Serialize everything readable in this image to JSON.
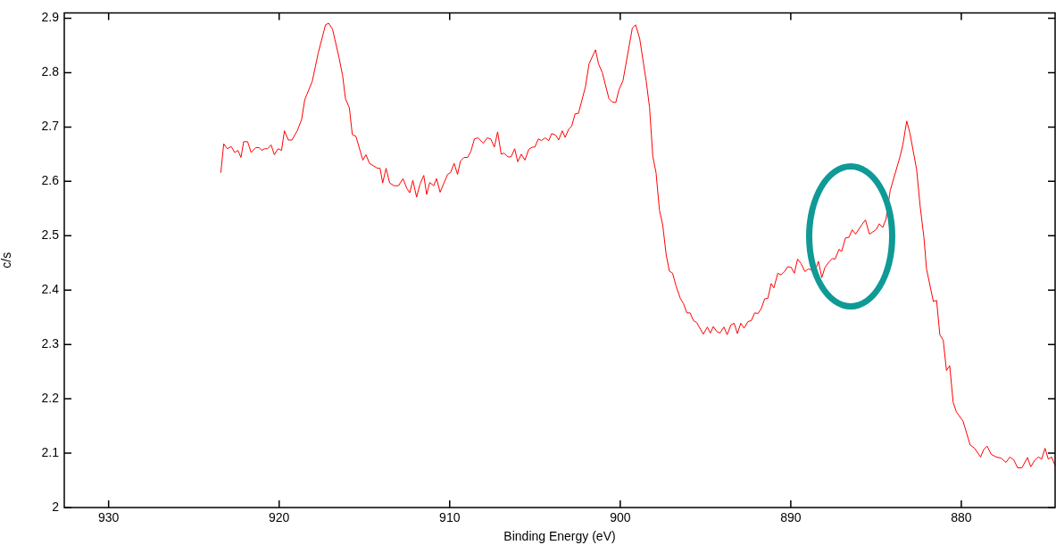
{
  "chart_data": {
    "type": "line",
    "xlabel": "Binding Energy (eV)",
    "ylabel": "c/s",
    "xlim": [
      932.6,
      874.5
    ],
    "xticks": [
      930,
      920,
      910,
      900,
      890,
      880
    ],
    "ylim": [
      2,
      2.91
    ],
    "yticks": [
      2,
      2.1,
      2.2,
      2.3,
      2.4,
      2.5,
      2.6,
      2.7,
      2.8,
      2.9
    ],
    "legend": false,
    "marker": "none",
    "line_style": "solid",
    "series": [
      {
        "color": "#ff0000",
        "x": [
          923.42,
          923.25,
          923.04,
          922.81,
          922.6,
          922.42,
          922.24,
          922.08,
          921.85,
          921.64,
          921.38,
          921.17,
          921.03,
          920.85,
          920.68,
          920.47,
          920.28,
          920.07,
          919.86,
          919.69,
          919.46,
          919.25,
          918.94,
          918.68,
          918.5,
          918.06,
          917.71,
          917.28,
          917.1,
          916.87,
          916.49,
          916.28,
          916.11,
          915.88,
          915.71,
          915.5,
          915.09,
          914.91,
          914.7,
          914.23,
          914.08,
          913.93,
          913.73,
          913.52,
          913.26,
          913,
          912.74,
          912.51,
          912.34,
          912.16,
          911.94,
          911.74,
          911.52,
          911.35,
          911.17,
          910.94,
          910.77,
          910.56,
          910.12,
          909.95,
          909.74,
          909.54,
          909.37,
          909.16,
          908.95,
          908.76,
          908.55,
          908.34,
          908.03,
          907.8,
          907.59,
          907.38,
          907.19,
          906.98,
          906.81,
          906.58,
          906.4,
          906.19,
          906.01,
          905.8,
          905.59,
          905.36,
          905.15,
          905.01,
          904.8,
          904.62,
          904.41,
          904.19,
          904.02,
          903.79,
          903.61,
          903.4,
          903.23,
          903.02,
          902.84,
          902.65,
          902.45,
          902.04,
          901.83,
          901.45,
          901.27,
          901.05,
          900.66,
          900.47,
          900.26,
          900.07,
          899.84,
          899.29,
          899.1,
          898.86,
          898.48,
          898.28,
          898.09,
          897.9,
          897.7,
          897.51,
          897.31,
          897.12,
          896.93,
          896.73,
          896.48,
          896.29,
          896.09,
          895.9,
          895.71,
          895.51,
          895.13,
          894.89,
          894.72,
          894.54,
          894.35,
          894.15,
          893.92,
          893.73,
          893.51,
          893.32,
          893.13,
          892.93,
          892.74,
          892.51,
          892.31,
          892.12,
          891.92,
          891.73,
          891.53,
          891.34,
          891.15,
          890.99,
          890.76,
          890.57,
          890.37,
          890.18,
          889.98,
          889.79,
          889.6,
          889.4,
          889.17,
          888.97,
          888.57,
          888.38,
          888.18,
          887.99,
          887.75,
          887.56,
          887.4,
          887.17,
          887.02,
          886.79,
          886.59,
          886.4,
          886.2,
          885.82,
          885.62,
          885.39,
          885.19,
          885,
          884.81,
          884.61,
          884.42,
          884.17,
          883.59,
          883.43,
          883.2,
          883.01,
          882.62,
          882.42,
          882.19,
          882.04,
          881.64,
          881.45,
          881.26,
          881.06,
          880.87,
          880.68,
          880.48,
          880.29,
          879.9,
          879.48,
          879.22,
          878.87,
          878.68,
          878.49,
          878.25,
          877.96,
          877.67,
          877.38,
          877.15,
          876.91,
          876.7,
          876.45,
          876.12,
          875.93,
          875.69,
          875.48,
          875.29,
          875.09,
          874.9,
          874.71,
          874.5
        ],
        "values": [
          2.616,
          2.669,
          2.66,
          2.664,
          2.653,
          2.657,
          2.644,
          2.673,
          2.673,
          2.653,
          2.662,
          2.662,
          2.657,
          2.66,
          2.66,
          2.667,
          2.649,
          2.66,
          2.657,
          2.693,
          2.676,
          2.676,
          2.693,
          2.714,
          2.75,
          2.784,
          2.836,
          2.888,
          2.891,
          2.88,
          2.828,
          2.795,
          2.752,
          2.735,
          2.686,
          2.683,
          2.639,
          2.649,
          2.633,
          2.624,
          2.624,
          2.597,
          2.624,
          2.597,
          2.592,
          2.592,
          2.605,
          2.587,
          2.579,
          2.602,
          2.571,
          2.595,
          2.611,
          2.576,
          2.598,
          2.592,
          2.605,
          2.58,
          2.613,
          2.616,
          2.633,
          2.613,
          2.637,
          2.644,
          2.644,
          2.655,
          2.678,
          2.68,
          2.67,
          2.68,
          2.678,
          2.663,
          2.691,
          2.65,
          2.652,
          2.645,
          2.645,
          2.66,
          2.636,
          2.65,
          2.639,
          2.659,
          2.663,
          2.663,
          2.678,
          2.675,
          2.68,
          2.675,
          2.688,
          2.685,
          2.676,
          2.693,
          2.681,
          2.696,
          2.702,
          2.724,
          2.725,
          2.774,
          2.816,
          2.842,
          2.816,
          2.8,
          2.752,
          2.746,
          2.745,
          2.769,
          2.785,
          2.882,
          2.888,
          2.863,
          2.785,
          2.736,
          2.646,
          2.616,
          2.547,
          2.52,
          2.466,
          2.435,
          2.431,
          2.408,
          2.385,
          2.375,
          2.358,
          2.358,
          2.344,
          2.34,
          2.319,
          2.332,
          2.321,
          2.333,
          2.324,
          2.321,
          2.332,
          2.318,
          2.336,
          2.339,
          2.32,
          2.339,
          2.33,
          2.342,
          2.344,
          2.358,
          2.357,
          2.366,
          2.384,
          2.385,
          2.412,
          2.404,
          2.431,
          2.428,
          2.434,
          2.443,
          2.442,
          2.431,
          2.457,
          2.449,
          2.434,
          2.439,
          2.435,
          2.453,
          2.423,
          2.442,
          2.452,
          2.458,
          2.457,
          2.475,
          2.471,
          2.496,
          2.497,
          2.511,
          2.503,
          2.521,
          2.529,
          2.503,
          2.507,
          2.511,
          2.522,
          2.515,
          2.53,
          2.583,
          2.646,
          2.667,
          2.711,
          2.688,
          2.622,
          2.556,
          2.496,
          2.439,
          2.379,
          2.381,
          2.318,
          2.308,
          2.252,
          2.261,
          2.194,
          2.176,
          2.159,
          2.115,
          2.109,
          2.093,
          2.107,
          2.113,
          2.098,
          2.093,
          2.091,
          2.083,
          2.093,
          2.087,
          2.073,
          2.073,
          2.092,
          2.075,
          2.087,
          2.093,
          2.089,
          2.109,
          2.089,
          2.093,
          2.077
        ]
      }
    ]
  }
}
